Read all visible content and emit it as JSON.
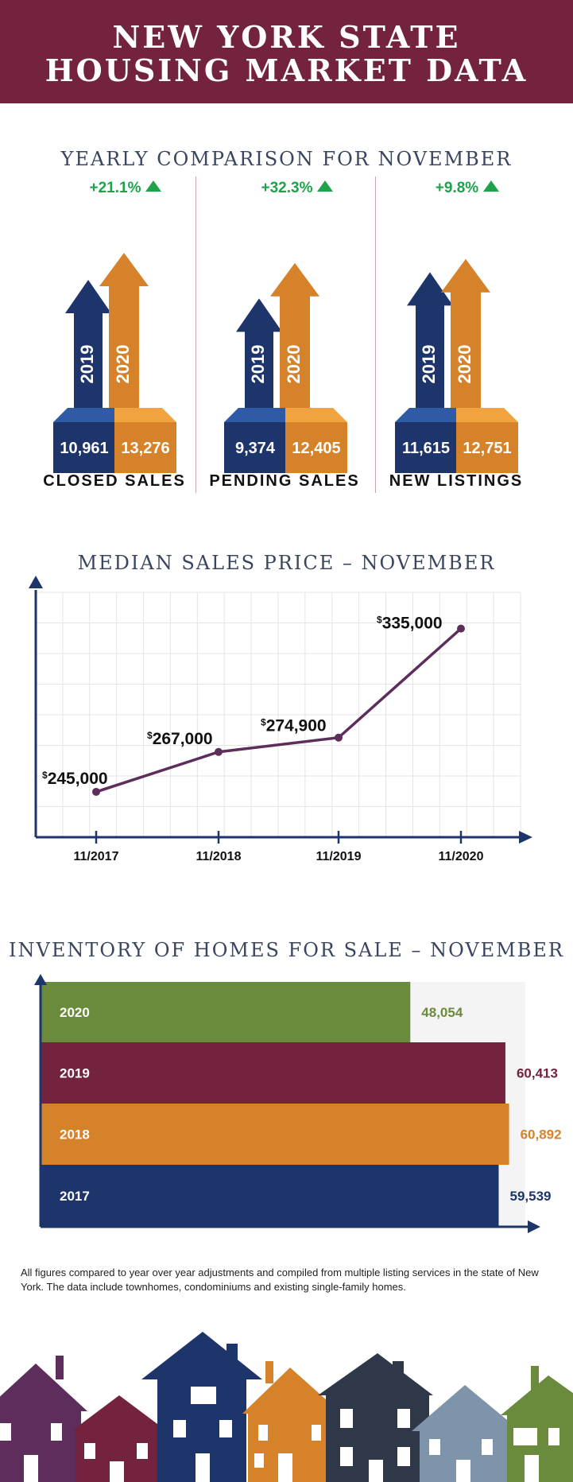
{
  "header": {
    "line1": "NEW YORK STATE",
    "line2": "HOUSING MARKET DATA"
  },
  "yearly": {
    "title": "YEARLY COMPARISON FOR NOVEMBER",
    "groups": [
      {
        "label": "CLOSED SALES",
        "change": "+21.1%",
        "y2019": "2019",
        "y2020": "2020",
        "v2019": "10,961",
        "v2020": "13,276",
        "n2019": 10961,
        "n2020": 13276
      },
      {
        "label": "PENDING SALES",
        "change": "+32.3%",
        "y2019": "2019",
        "y2020": "2020",
        "v2019": "9,374",
        "v2020": "12,405",
        "n2019": 9374,
        "n2020": 12405
      },
      {
        "label": "NEW LISTINGS",
        "change": "+9.8%",
        "y2019": "2019",
        "y2020": "2020",
        "v2019": "11,615",
        "v2020": "12,751",
        "n2019": 11615,
        "n2020": 12751
      }
    ]
  },
  "median": {
    "title": "MEDIAN SALES PRICE – NOVEMBER",
    "labels": [
      "$245,000",
      "$267,000",
      "$274,900",
      "$335,000"
    ]
  },
  "inventory": {
    "title": "INVENTORY OF HOMES FOR SALE – NOVEMBER"
  },
  "footnote": "All figures compared to year over year adjustments and compiled from multiple listing services in the state of New York.  The data include townhomes, condominiums and existing single-family homes.",
  "colors": {
    "maroon": "#74233f",
    "navy": "#1e356b",
    "orange": "#d6822b",
    "olive": "#6a8a3c",
    "green": "#1ea34a",
    "purple": "#5d2e5c"
  },
  "chart_data": [
    {
      "type": "bar",
      "categories": [
        "CLOSED SALES",
        "PENDING SALES",
        "NEW LISTINGS"
      ],
      "series": [
        {
          "name": "2019",
          "values": [
            10961,
            9374,
            11615
          ]
        },
        {
          "name": "2020",
          "values": [
            13276,
            12405,
            12751
          ]
        }
      ],
      "annotations": [
        "+21.1%",
        "+32.3%",
        "+9.8%"
      ],
      "title": "YEARLY COMPARISON FOR NOVEMBER"
    },
    {
      "type": "line",
      "title": "MEDIAN SALES PRICE – NOVEMBER",
      "x": [
        "11/2017",
        "11/2018",
        "11/2019",
        "11/2020"
      ],
      "values": [
        245000,
        267000,
        274900,
        335000
      ],
      "ylim": [
        220000,
        355000
      ],
      "grid": true
    },
    {
      "type": "bar",
      "orientation": "horizontal",
      "title": "INVENTORY OF HOMES FOR SALE – NOVEMBER",
      "categories": [
        "2020",
        "2019",
        "2018",
        "2017"
      ],
      "values": [
        48054,
        60413,
        60892,
        59539
      ],
      "value_labels": [
        "48,054",
        "60,413",
        "60,892",
        "59,539"
      ],
      "colors": [
        "#6a8a3c",
        "#74233f",
        "#d6822b",
        "#1e356b"
      ]
    }
  ]
}
